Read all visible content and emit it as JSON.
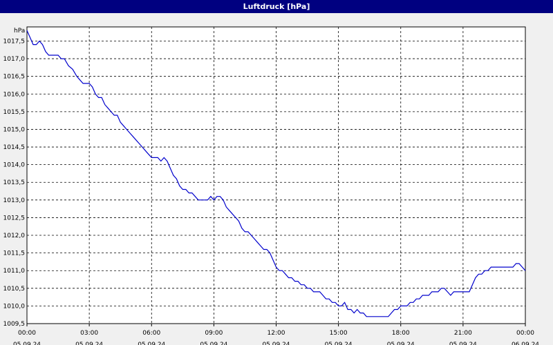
{
  "window": {
    "title": "Luftdruck [hPa]"
  },
  "chart_data": {
    "type": "line",
    "title": "Luftdruck [hPa]",
    "unit_label": "hPa",
    "ylim": [
      1009.5,
      1017.9
    ],
    "y_ticks": [
      "1009,5",
      "1010,0",
      "1010,5",
      "1011,0",
      "1011,5",
      "1012,0",
      "1012,5",
      "1013,0",
      "1013,5",
      "1014,0",
      "1014,5",
      "1015,0",
      "1015,5",
      "1016,0",
      "1016,5",
      "1017,0",
      "1017,5"
    ],
    "x_ticks": [
      {
        "time": "00:00",
        "date": "05.09.24"
      },
      {
        "time": "03:00",
        "date": "05.09.24"
      },
      {
        "time": "06:00",
        "date": "05.09.24"
      },
      {
        "time": "09:00",
        "date": "05.09.24"
      },
      {
        "time": "12:00",
        "date": "05.09.24"
      },
      {
        "time": "15:00",
        "date": "05.09.24"
      },
      {
        "time": "18:00",
        "date": "05.09.24"
      },
      {
        "time": "21:00",
        "date": "05.09.24"
      },
      {
        "time": "00:00",
        "date": "06.09.24"
      }
    ],
    "x_range": [
      "05.09.24 00:00",
      "06.09.24 00:00"
    ],
    "grid": true,
    "line_color": "#0000cc",
    "series": [
      {
        "x_hours": [
          0,
          0.15,
          0.3,
          0.45,
          0.6,
          0.75,
          0.9,
          1.05,
          1.2,
          1.35,
          1.5,
          1.65,
          1.8,
          2.0,
          2.2,
          2.4,
          2.55,
          2.7,
          2.85,
          3.0,
          3.15,
          3.3,
          3.45,
          3.6,
          3.75,
          3.9,
          4.05,
          4.2,
          4.35,
          4.5,
          4.65,
          4.8,
          4.95,
          5.1,
          5.25,
          5.4,
          5.55,
          5.7,
          5.85,
          6.0,
          6.15,
          6.3,
          6.45,
          6.6,
          6.75,
          6.9,
          7.05,
          7.2,
          7.35,
          7.5,
          7.65,
          7.8,
          7.95,
          8.1,
          8.25,
          8.4,
          8.55,
          8.7,
          8.85,
          9.0,
          9.15,
          9.3,
          9.45,
          9.6,
          9.75,
          9.9,
          10.05,
          10.2,
          10.35,
          10.5,
          10.65,
          10.8,
          10.95,
          11.1,
          11.25,
          11.4,
          11.55,
          11.7,
          11.85,
          12.0,
          12.15,
          12.3,
          12.45,
          12.6,
          12.75,
          12.9,
          13.05,
          13.2,
          13.35,
          13.5,
          13.65,
          13.8,
          13.95,
          14.1,
          14.25,
          14.4,
          14.55,
          14.7,
          14.85,
          15.0,
          15.15,
          15.3,
          15.45,
          15.6,
          15.75,
          15.9,
          16.05,
          16.2,
          16.35,
          16.5,
          16.65,
          16.8,
          16.95,
          17.1,
          17.25,
          17.4,
          17.55,
          17.7,
          17.85,
          18.0,
          18.15,
          18.3,
          18.45,
          18.6,
          18.75,
          18.9,
          19.05,
          19.2,
          19.35,
          19.5,
          19.65,
          19.8,
          19.95,
          20.1,
          20.25,
          20.4,
          20.55,
          20.7,
          20.85,
          21.0,
          21.15,
          21.3,
          21.45,
          21.6,
          21.75,
          21.9,
          22.05,
          22.2,
          22.35,
          22.5,
          22.65,
          22.8,
          22.95,
          23.1,
          23.25,
          23.4,
          23.55,
          23.7,
          23.85,
          24.0
        ],
        "y_hpa": [
          1017.8,
          1017.6,
          1017.4,
          1017.4,
          1017.5,
          1017.4,
          1017.2,
          1017.1,
          1017.1,
          1017.1,
          1017.1,
          1017.0,
          1017.0,
          1016.8,
          1016.7,
          1016.5,
          1016.4,
          1016.3,
          1016.3,
          1016.3,
          1016.2,
          1016.0,
          1015.9,
          1015.9,
          1015.7,
          1015.6,
          1015.5,
          1015.4,
          1015.4,
          1015.2,
          1015.1,
          1015.0,
          1014.9,
          1014.8,
          1014.7,
          1014.6,
          1014.5,
          1014.4,
          1014.3,
          1014.2,
          1014.2,
          1014.2,
          1014.1,
          1014.2,
          1014.1,
          1013.9,
          1013.7,
          1013.6,
          1013.4,
          1013.3,
          1013.3,
          1013.2,
          1013.2,
          1013.1,
          1013.0,
          1013.0,
          1013.0,
          1013.0,
          1013.1,
          1013.0,
          1013.1,
          1013.1,
          1013.0,
          1012.8,
          1012.7,
          1012.6,
          1012.5,
          1012.4,
          1012.2,
          1012.1,
          1012.1,
          1012.0,
          1011.9,
          1011.8,
          1011.7,
          1011.6,
          1011.6,
          1011.5,
          1011.3,
          1011.1,
          1011.0,
          1011.0,
          1010.9,
          1010.8,
          1010.8,
          1010.7,
          1010.7,
          1010.6,
          1010.6,
          1010.5,
          1010.5,
          1010.4,
          1010.4,
          1010.4,
          1010.3,
          1010.2,
          1010.2,
          1010.1,
          1010.1,
          1010.0,
          1010.0,
          1010.1,
          1009.9,
          1009.9,
          1009.8,
          1009.9,
          1009.8,
          1009.8,
          1009.7,
          1009.7,
          1009.7,
          1009.7,
          1009.7,
          1009.7,
          1009.7,
          1009.7,
          1009.8,
          1009.9,
          1009.9,
          1010.0,
          1010.0,
          1010.0,
          1010.1,
          1010.1,
          1010.2,
          1010.2,
          1010.3,
          1010.3,
          1010.3,
          1010.4,
          1010.4,
          1010.4,
          1010.5,
          1010.5,
          1010.4,
          1010.3,
          1010.4,
          1010.4,
          1010.4,
          1010.4,
          1010.4,
          1010.4,
          1010.6,
          1010.8,
          1010.9,
          1010.9,
          1011.0,
          1011.0,
          1011.1,
          1011.1,
          1011.1,
          1011.1,
          1011.1,
          1011.1,
          1011.1,
          1011.1,
          1011.2,
          1011.2,
          1011.1,
          1011.0
        ]
      }
    ]
  }
}
